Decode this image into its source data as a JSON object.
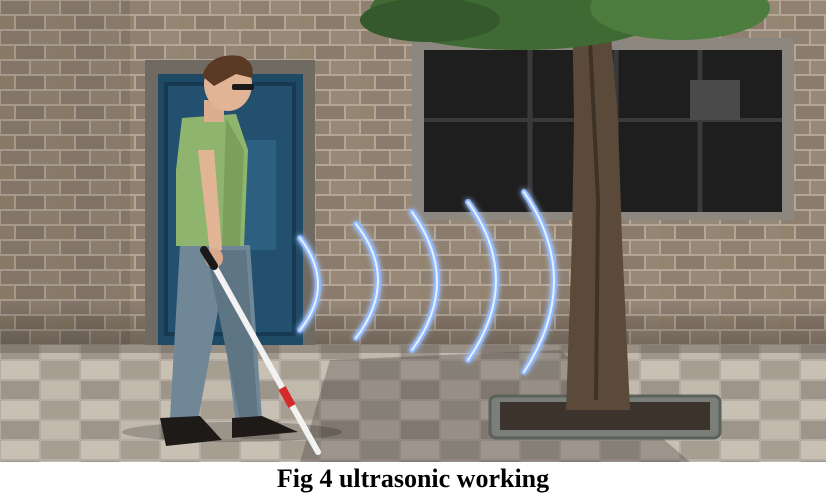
{
  "figure": {
    "caption": "Fig 4 ultrasonic working",
    "scene": {
      "subject": "person",
      "items": [
        "brick-wall",
        "door",
        "window",
        "tree",
        "cane",
        "ultrasonic-waves",
        "paved-sidewalk"
      ],
      "colors": {
        "brick": "#8f8172",
        "mortar": "#b3a697",
        "shirt": "#8fb46e",
        "jeans": "#6f8796",
        "door": "#1e4a66",
        "wave": "#8fb8ff",
        "wave_core": "#e6f0ff",
        "foliage": "#3f6a34",
        "cane": "#f2f2f2",
        "cane_tip": "#d42a2a"
      }
    }
  }
}
